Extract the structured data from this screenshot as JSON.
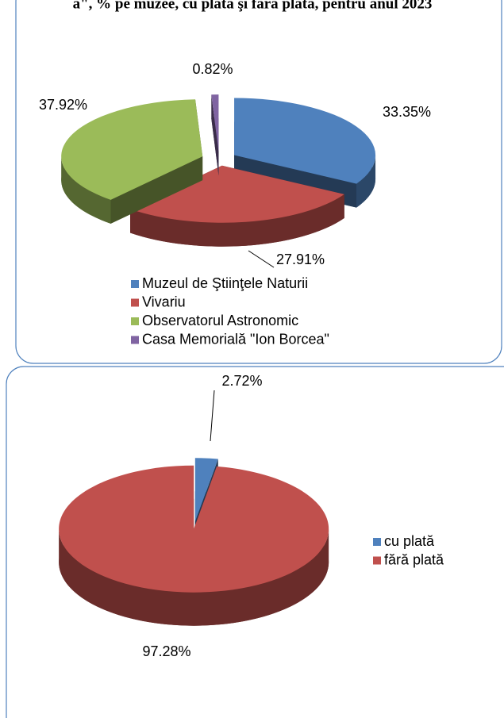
{
  "title": "a\", % pe muzee, cu plată şi fără plată, pentru anul 2023",
  "chart_data": [
    {
      "type": "pie",
      "categories": [
        "Muzeul de Ştiinţele Naturii",
        "Vivariu",
        "Observatorul Astronomic",
        "Casa Memorială \"Ion Borcea\""
      ],
      "values": [
        33.35,
        27.91,
        37.92,
        0.82
      ],
      "value_labels": [
        "33.35%",
        "27.91%",
        "37.92%",
        "0.82%"
      ],
      "colors": [
        "#4f81bd",
        "#c0504d",
        "#9bbb59",
        "#8064a2"
      ],
      "legend": "bottom"
    },
    {
      "type": "pie",
      "categories": [
        "cu plată",
        "fără plată"
      ],
      "values": [
        2.72,
        97.28
      ],
      "value_labels": [
        "2.72%",
        "97.28%"
      ],
      "colors": [
        "#4f81bd",
        "#c0504d"
      ],
      "legend": "right"
    }
  ]
}
